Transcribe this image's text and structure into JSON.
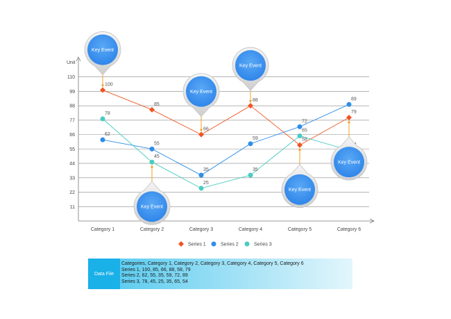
{
  "chart_data": {
    "type": "line",
    "ylabel": "Unit",
    "xlabel": "",
    "ylim": [
      0,
      121
    ],
    "yticks": [
      11,
      22,
      33,
      44,
      55,
      66,
      77,
      88,
      99,
      110
    ],
    "categories": [
      "Category 1",
      "Category 2",
      "Category 3",
      "Category 4",
      "Category 5",
      "Category 6"
    ],
    "series": [
      {
        "name": "Series 1",
        "values": [
          100,
          85,
          66,
          88,
          58,
          79
        ],
        "color": "#ee5522",
        "marker": "diamond"
      },
      {
        "name": "Series 2",
        "values": [
          62,
          55,
          35,
          59,
          72,
          89
        ],
        "color": "#2f8ee8",
        "marker": "circle"
      },
      {
        "name": "Series 3",
        "values": [
          78,
          45,
          25,
          35,
          65,
          54
        ],
        "color": "#49ccc0",
        "marker": "circle"
      }
    ],
    "grid": true,
    "legend": "bottom",
    "key_events": [
      {
        "label": "Key Event",
        "category": 0,
        "series": 0,
        "position": "above"
      },
      {
        "label": "Key Event",
        "category": 1,
        "series": 2,
        "position": "below"
      },
      {
        "label": "Key Event",
        "category": 2,
        "series": 0,
        "position": "above"
      },
      {
        "label": "Key Event",
        "category": 3,
        "series": 0,
        "position": "above"
      },
      {
        "label": "Key Event",
        "category": 4,
        "series": 0,
        "position": "below"
      },
      {
        "label": "Key Event",
        "category": 5,
        "series": 0,
        "position": "below"
      }
    ],
    "colors": {
      "accent": "#3a8ee8",
      "event_connector": "#f0a020",
      "grid": "#888888"
    }
  },
  "data_file": {
    "label": "Data File",
    "lines": [
      "Categories, Category 1, Category 2, Category 3, Category 4, Category 5, Category 6",
      "Series 1, 100, 85, 66, 88, 58, 79",
      "Series 2, 62, 55, 35, 59, 72, 89",
      "Series 3, 78, 45, 25, 35, 65, 54"
    ]
  }
}
